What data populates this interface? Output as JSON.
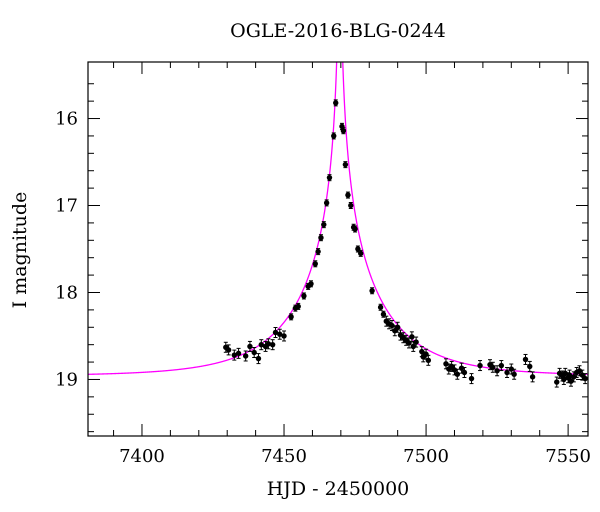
{
  "chart_data": {
    "type": "scatter",
    "title": "OGLE-2016-BLG-0244",
    "xlabel": "HJD - 2450000",
    "ylabel": "I magnitude",
    "xlim": [
      7381,
      7557
    ],
    "ylim": [
      19.65,
      15.35
    ],
    "y_inverted": true,
    "xticks": [
      7400,
      7450,
      7500,
      7550
    ],
    "yticks": [
      16,
      17,
      18,
      19
    ],
    "grid": false,
    "legend": "none",
    "colors": {
      "model": "#ff00ff",
      "data": "#000000"
    },
    "model": {
      "baseline": 18.96,
      "t0": 7469.6,
      "u0": 0.0022,
      "tE": 30
    },
    "series": [
      {
        "points": [
          [
            7429.5,
            18.63
          ],
          [
            7430.5,
            18.66
          ],
          [
            7432.5,
            18.72
          ],
          [
            7434.0,
            18.7
          ],
          [
            7436.5,
            18.73
          ],
          [
            7438.0,
            18.62
          ],
          [
            7439.5,
            18.69
          ],
          [
            7441.0,
            18.76
          ],
          [
            7442.0,
            18.6
          ],
          [
            7443.5,
            18.62
          ],
          [
            7444.5,
            18.59
          ],
          [
            7446.0,
            18.6
          ],
          [
            7447.0,
            18.46
          ],
          [
            7448.5,
            18.48
          ],
          [
            7450.0,
            18.5
          ],
          [
            7452.5,
            18.28
          ],
          [
            7454.0,
            18.18
          ],
          [
            7455.0,
            18.16
          ],
          [
            7457.0,
            18.04
          ],
          [
            7458.5,
            17.93
          ],
          [
            7459.5,
            17.9
          ],
          [
            7461.0,
            17.67
          ],
          [
            7462.0,
            17.53
          ],
          [
            7463.0,
            17.37
          ],
          [
            7464.0,
            17.22
          ],
          [
            7465.0,
            16.97
          ],
          [
            7466.0,
            16.68
          ],
          [
            7467.5,
            16.2
          ],
          [
            7468.2,
            15.82
          ],
          [
            7470.4,
            16.09
          ],
          [
            7470.9,
            16.14
          ],
          [
            7471.6,
            16.53
          ],
          [
            7472.5,
            16.88
          ],
          [
            7473.5,
            17.0
          ],
          [
            7474.5,
            17.25
          ],
          [
            7475.0,
            17.27
          ],
          [
            7476.0,
            17.5
          ],
          [
            7477.0,
            17.55
          ],
          [
            7481.0,
            17.98
          ],
          [
            7484.0,
            18.17
          ],
          [
            7485.0,
            18.25
          ],
          [
            7486.0,
            18.33
          ],
          [
            7487.0,
            18.36
          ],
          [
            7488.0,
            18.38
          ],
          [
            7489.0,
            18.44
          ],
          [
            7490.0,
            18.4
          ],
          [
            7491.0,
            18.49
          ],
          [
            7492.0,
            18.52
          ],
          [
            7493.0,
            18.55
          ],
          [
            7494.0,
            18.58
          ],
          [
            7495.0,
            18.51
          ],
          [
            7495.5,
            18.62
          ],
          [
            7496.5,
            18.57
          ],
          [
            7498.5,
            18.68
          ],
          [
            7499.0,
            18.74
          ],
          [
            7500.0,
            18.71
          ],
          [
            7500.8,
            18.78
          ],
          [
            7507.0,
            18.82
          ],
          [
            7508.0,
            18.88
          ],
          [
            7509.0,
            18.85
          ],
          [
            7510.0,
            18.89
          ],
          [
            7511.0,
            18.94
          ],
          [
            7512.5,
            18.87
          ],
          [
            7513.5,
            18.92
          ],
          [
            7516.0,
            18.99
          ],
          [
            7519.0,
            18.84
          ],
          [
            7522.5,
            18.83
          ],
          [
            7523.5,
            18.86
          ],
          [
            7525.0,
            18.9
          ],
          [
            7526.5,
            18.84
          ],
          [
            7528.5,
            18.92
          ],
          [
            7530.0,
            18.88
          ],
          [
            7531.0,
            18.94
          ],
          [
            7535.0,
            18.77
          ],
          [
            7536.5,
            18.85
          ],
          [
            7537.5,
            18.97
          ],
          [
            7546.0,
            19.03
          ],
          [
            7547.0,
            18.93
          ],
          [
            7548.0,
            18.96
          ],
          [
            7548.5,
            19.0
          ],
          [
            7549.0,
            18.93
          ],
          [
            7550.0,
            18.98
          ],
          [
            7550.5,
            18.95
          ],
          [
            7551.0,
            19.02
          ],
          [
            7552.0,
            18.97
          ],
          [
            7553.0,
            18.92
          ],
          [
            7554.0,
            18.9
          ],
          [
            7555.0,
            18.95
          ],
          [
            7556.0,
            18.99
          ]
        ]
      }
    ]
  }
}
